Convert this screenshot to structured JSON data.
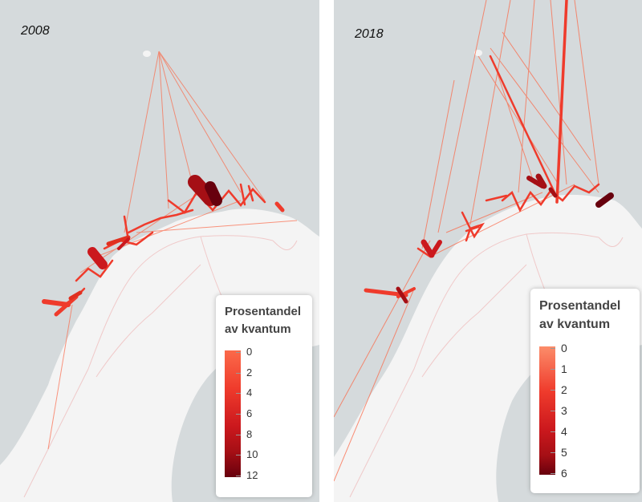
{
  "panels": [
    {
      "year": "2008",
      "legend": {
        "title_line1": "Prosentandel",
        "title_line2": "av kvantum",
        "ticks": [
          "0",
          "2",
          "4",
          "6",
          "8",
          "10",
          "12"
        ]
      }
    },
    {
      "year": "2018",
      "legend": {
        "title_line1": "Prosentandel",
        "title_line2": "av kvantum",
        "ticks": [
          "0",
          "1",
          "2",
          "3",
          "4",
          "5",
          "6"
        ]
      }
    }
  ],
  "colors": {
    "sea": "#d5dadc",
    "land": "#f4f4f4",
    "border": "#f0c9c9",
    "lake": "#d0d6d8",
    "scale_low": "#fb6a4a",
    "scale_mid": "#cb181d",
    "scale_high": "#67000d"
  }
}
